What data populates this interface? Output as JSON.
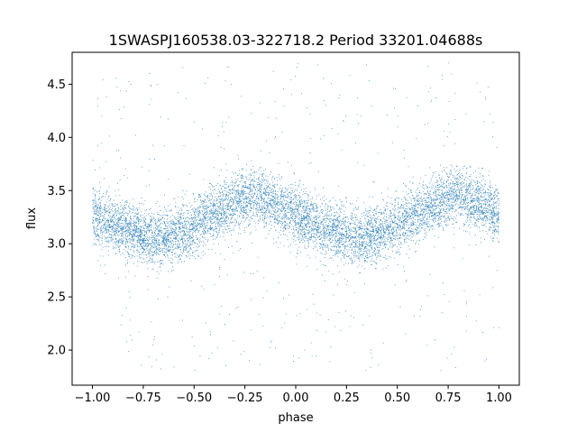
{
  "chart_data": {
    "type": "scatter",
    "title": "1SWASPJ160538.03-322718.2 Period 33201.04688s",
    "xlabel": "phase",
    "ylabel": "flux",
    "xlim": [
      -1.1,
      1.1
    ],
    "ylim": [
      1.67,
      4.8
    ],
    "xticks": [
      -1.0,
      -0.75,
      -0.5,
      -0.25,
      0.0,
      0.25,
      0.5,
      0.75,
      1.0
    ],
    "xtick_labels": [
      "−1.00",
      "−0.75",
      "−0.50",
      "−0.25",
      "0.00",
      "0.25",
      "0.50",
      "0.75",
      "1.00"
    ],
    "yticks": [
      2.0,
      2.5,
      3.0,
      3.5,
      4.0,
      4.5
    ],
    "ytick_labels": [
      "2.0",
      "2.5",
      "3.0",
      "3.5",
      "4.0",
      "4.5"
    ],
    "grid": false,
    "marker_color": "#1f77b4",
    "series": [
      {
        "x_range": [
          -1.0,
          1.0
        ],
        "profile_phase": [
          -1.0,
          -0.9,
          -0.8,
          -0.7,
          -0.6,
          -0.5,
          -0.4,
          -0.3,
          -0.2,
          -0.1,
          0.0,
          0.1,
          0.2,
          0.3,
          0.4,
          0.5,
          0.6,
          0.7,
          0.8,
          0.9,
          1.0
        ],
        "profile_flux": [
          3.25,
          3.18,
          3.1,
          3.05,
          3.08,
          3.15,
          3.28,
          3.4,
          3.45,
          3.38,
          3.27,
          3.18,
          3.1,
          3.05,
          3.08,
          3.15,
          3.28,
          3.4,
          3.45,
          3.38,
          3.27
        ],
        "scatter_std": 0.13,
        "y_min": 1.8,
        "y_max": 4.7
      }
    ]
  }
}
